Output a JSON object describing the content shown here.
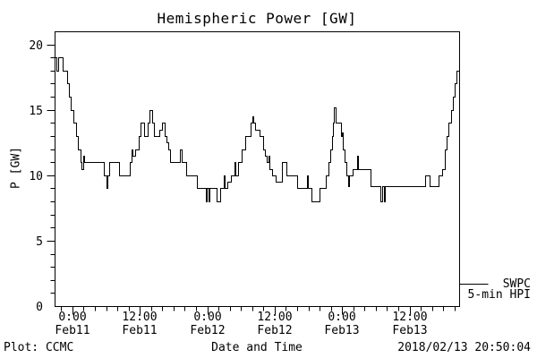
{
  "title": "Hemispheric Power [GW]",
  "y_axis": {
    "label": "P [GW]",
    "ticks": [
      0,
      5,
      10,
      15,
      20
    ]
  },
  "x_axis": {
    "label": "Date and Time",
    "ticks": [
      {
        "time": "0:00",
        "date": "Feb11",
        "offset_h": 3.17
      },
      {
        "time": "12:00",
        "date": "Feb11",
        "offset_h": 15.17
      },
      {
        "time": "0:00",
        "date": "Feb12",
        "offset_h": 27.17
      },
      {
        "time": "12:00",
        "date": "Feb12",
        "offset_h": 39.17
      },
      {
        "time": "0:00",
        "date": "Feb13",
        "offset_h": 51.17
      },
      {
        "time": "12:00",
        "date": "Feb13",
        "offset_h": 63.17
      }
    ]
  },
  "footer": {
    "left": "Plot: CCMC",
    "right": "2018/02/13 20:50:04"
  },
  "legend": {
    "source": "SWPC",
    "product": "5-min HPI"
  },
  "colors": {
    "line": "#000000",
    "frame": "#000000",
    "background": "#ffffff"
  },
  "chart_data": {
    "type": "line",
    "step": true,
    "title": "Hemispheric Power [GW]",
    "xlabel": "Date and Time",
    "ylabel": "P [GW]",
    "ylim": [
      0,
      21
    ],
    "y_major_ticks": [
      0,
      5,
      10,
      15,
      20
    ],
    "x_start": "2018/02/10 20:50",
    "x_end": "2018/02/13 20:50:04",
    "x_span_hours": 72,
    "x_minor_tick_hours": 2,
    "x_first_minor_offset_h": 1.17,
    "grid": false,
    "legend_position": "outside-right-bottom",
    "series": [
      {
        "name": "SWPC 5-min HPI",
        "units": "GW",
        "x_unit": "hours since 2018/02/10 20:50",
        "points": [
          [
            0,
            19
          ],
          [
            0.35,
            18
          ],
          [
            0.6,
            19
          ],
          [
            1.4,
            18
          ],
          [
            2.2,
            17
          ],
          [
            2.5,
            16
          ],
          [
            2.9,
            15
          ],
          [
            3.3,
            14
          ],
          [
            3.8,
            13
          ],
          [
            4.2,
            12
          ],
          [
            4.6,
            11
          ],
          [
            4.8,
            10.5
          ],
          [
            5.05,
            11.5
          ],
          [
            5.3,
            11
          ],
          [
            8.7,
            10
          ],
          [
            9.2,
            9
          ],
          [
            9.45,
            10
          ],
          [
            9.7,
            11
          ],
          [
            11.5,
            10
          ],
          [
            13.4,
            11
          ],
          [
            13.65,
            12
          ],
          [
            13.9,
            11.5
          ],
          [
            14.4,
            12
          ],
          [
            15.0,
            13
          ],
          [
            15.35,
            14
          ],
          [
            16.0,
            13
          ],
          [
            16.5,
            14
          ],
          [
            16.9,
            15
          ],
          [
            17.3,
            14
          ],
          [
            17.75,
            13
          ],
          [
            18.6,
            13.5
          ],
          [
            19.05,
            14
          ],
          [
            19.6,
            13
          ],
          [
            19.9,
            12.5
          ],
          [
            20.2,
            12
          ],
          [
            20.5,
            11
          ],
          [
            22.3,
            12
          ],
          [
            22.55,
            11
          ],
          [
            23.35,
            10
          ],
          [
            25.3,
            9
          ],
          [
            26.9,
            8
          ],
          [
            27.15,
            9
          ],
          [
            27.4,
            8
          ],
          [
            27.6,
            9
          ],
          [
            28.9,
            8
          ],
          [
            29.5,
            9
          ],
          [
            30.1,
            10
          ],
          [
            30.3,
            9
          ],
          [
            30.7,
            9.5
          ],
          [
            31.4,
            10
          ],
          [
            32.0,
            11
          ],
          [
            32.2,
            10
          ],
          [
            32.6,
            11
          ],
          [
            33.3,
            12
          ],
          [
            34.0,
            13
          ],
          [
            34.9,
            14
          ],
          [
            35.2,
            14.5
          ],
          [
            35.4,
            14
          ],
          [
            35.75,
            13.5
          ],
          [
            36.5,
            13
          ],
          [
            37.1,
            12
          ],
          [
            37.4,
            11.5
          ],
          [
            37.7,
            11
          ],
          [
            38.0,
            11.5
          ],
          [
            38.3,
            10.5
          ],
          [
            38.7,
            10
          ],
          [
            39.4,
            9.5
          ],
          [
            40.5,
            11
          ],
          [
            41.3,
            10
          ],
          [
            43.2,
            9
          ],
          [
            44.9,
            10
          ],
          [
            45.15,
            9
          ],
          [
            45.7,
            8
          ],
          [
            47.1,
            9
          ],
          [
            48.3,
            10
          ],
          [
            48.8,
            11
          ],
          [
            49.1,
            12
          ],
          [
            49.4,
            13
          ],
          [
            49.6,
            14
          ],
          [
            49.75,
            15.2
          ],
          [
            49.95,
            14
          ],
          [
            51.0,
            13
          ],
          [
            51.15,
            13.3
          ],
          [
            51.3,
            12
          ],
          [
            51.6,
            11
          ],
          [
            51.9,
            10
          ],
          [
            52.2,
            9.2
          ],
          [
            52.35,
            10
          ],
          [
            53.0,
            10.5
          ],
          [
            53.8,
            11.5
          ],
          [
            54.05,
            10.5
          ],
          [
            56.2,
            9.2
          ],
          [
            58.0,
            8
          ],
          [
            58.3,
            9.2
          ],
          [
            58.55,
            8
          ],
          [
            58.8,
            9.2
          ],
          [
            66.0,
            10
          ],
          [
            66.8,
            9.2
          ],
          [
            68.3,
            10
          ],
          [
            69.0,
            10.5
          ],
          [
            69.5,
            12
          ],
          [
            69.8,
            13
          ],
          [
            70.15,
            14
          ],
          [
            70.5,
            15
          ],
          [
            70.85,
            16
          ],
          [
            71.2,
            17
          ],
          [
            71.55,
            18
          ],
          [
            72,
            18
          ]
        ]
      }
    ]
  }
}
